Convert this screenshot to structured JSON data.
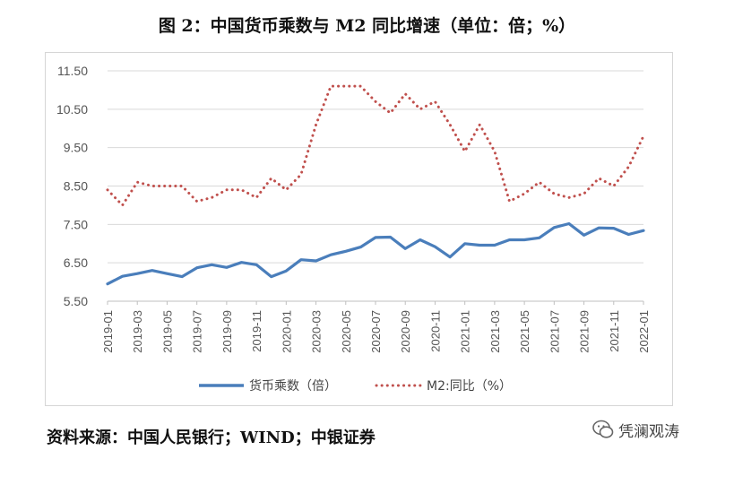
{
  "title": "图 2：中国货币乘数与 M2 同比增速（单位：倍；%）",
  "source": "资料来源：中国人民银行；WIND；中银证券",
  "watermark": "凭澜观涛",
  "colors": {
    "multiplier": "#4a7ebb",
    "m2": "#c0504d",
    "grid": "#d9d9d9",
    "axis": "#555555"
  },
  "chart_data": {
    "type": "line",
    "title": "中国货币乘数与 M2 同比增速（单位：倍；%）",
    "xlabel": "",
    "ylabel": "",
    "ylim": [
      5.5,
      11.5
    ],
    "yticks": [
      "5.50",
      "6.50",
      "7.50",
      "8.50",
      "9.50",
      "10.50",
      "11.50"
    ],
    "ytick_values": [
      5.5,
      6.5,
      7.5,
      8.5,
      9.5,
      10.5,
      11.5
    ],
    "x": [
      "2019-01",
      "2019-02",
      "2019-03",
      "2019-04",
      "2019-05",
      "2019-06",
      "2019-07",
      "2019-08",
      "2019-09",
      "2019-10",
      "2019-11",
      "2019-12",
      "2020-01",
      "2020-02",
      "2020-03",
      "2020-04",
      "2020-05",
      "2020-06",
      "2020-07",
      "2020-08",
      "2020-09",
      "2020-10",
      "2020-11",
      "2020-12",
      "2021-01",
      "2021-02",
      "2021-03",
      "2021-04",
      "2021-05",
      "2021-06",
      "2021-07",
      "2021-08",
      "2021-09",
      "2021-10",
      "2021-11",
      "2021-12",
      "2022-01"
    ],
    "xtick_labels": [
      "2019-01",
      "2019-03",
      "2019-05",
      "2019-07",
      "2019-09",
      "2019-11",
      "2020-01",
      "2020-03",
      "2020-05",
      "2020-07",
      "2020-09",
      "2020-11",
      "2021-01",
      "2021-03",
      "2021-05",
      "2021-07",
      "2021-09",
      "2021-11",
      "2022-01"
    ],
    "legend_position": "bottom",
    "series": [
      {
        "name": "货币乘数（倍）",
        "style": "solid",
        "values": [
          5.95,
          6.15,
          6.22,
          6.3,
          6.22,
          6.14,
          6.37,
          6.45,
          6.38,
          6.51,
          6.45,
          6.14,
          6.29,
          6.58,
          6.55,
          6.71,
          6.8,
          6.91,
          7.16,
          7.17,
          6.87,
          7.1,
          6.92,
          6.65,
          7.0,
          6.96,
          6.96,
          7.1,
          7.1,
          7.15,
          7.42,
          7.52,
          7.22,
          7.41,
          7.4,
          7.24,
          7.34
        ]
      },
      {
        "name": "M2:同比（%）",
        "style": "dotted",
        "values": [
          8.4,
          8.0,
          8.6,
          8.5,
          8.5,
          8.5,
          8.1,
          8.2,
          8.4,
          8.4,
          8.2,
          8.7,
          8.4,
          8.8,
          10.1,
          11.1,
          11.1,
          11.1,
          10.7,
          10.4,
          10.9,
          10.5,
          10.7,
          10.1,
          9.4,
          10.1,
          9.4,
          8.1,
          8.3,
          8.6,
          8.3,
          8.2,
          8.3,
          8.7,
          8.5,
          9.0,
          9.8
        ]
      }
    ]
  }
}
